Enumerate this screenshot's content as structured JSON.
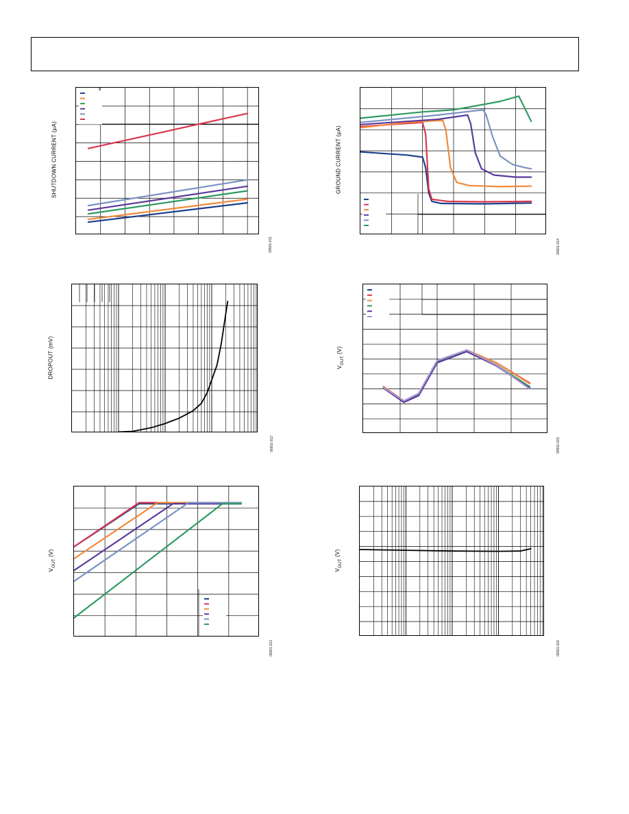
{
  "header": {},
  "chart_data": [
    {
      "id": "c1",
      "type": "line",
      "ylabel": "SHUTDOWN CURRENT (µA)",
      "figure_id": "06501-011",
      "grid": true,
      "xlim": [
        0,
        7.5
      ],
      "ylim": [
        0,
        8
      ],
      "x_gridlines": [
        1,
        2,
        3,
        4,
        5,
        6,
        7
      ],
      "y_gridlines": [
        1,
        2,
        3,
        4,
        5,
        6,
        7
      ],
      "legend_placement": "top-left",
      "series": [
        {
          "color": "#1c3f8a",
          "points": [
            [
              0.5,
              0.7
            ],
            [
              7,
              1.75
            ]
          ]
        },
        {
          "color": "#f28a3a",
          "points": [
            [
              0.5,
              0.85
            ],
            [
              7,
              1.95
            ]
          ]
        },
        {
          "color": "#2e9a62",
          "points": [
            [
              0.5,
              1.15
            ],
            [
              7,
              2.4
            ]
          ]
        },
        {
          "color": "#5a3a9c",
          "points": [
            [
              0.5,
              1.35
            ],
            [
              7,
              2.65
            ]
          ]
        },
        {
          "color": "#7a92c2",
          "points": [
            [
              0.5,
              1.6
            ],
            [
              7,
              3.0
            ]
          ]
        },
        {
          "color": "#d8374f",
          "points": [
            [
              0.5,
              4.7
            ],
            [
              7,
              6.6
            ]
          ]
        }
      ]
    },
    {
      "id": "c2",
      "type": "line",
      "ylabel": "GROUND CURRENT (µA)",
      "figure_id": "06501-014",
      "grid": true,
      "xlim": [
        0,
        6
      ],
      "ylim": [
        0,
        7
      ],
      "x_gridlines": [
        1,
        2,
        3,
        4,
        5
      ],
      "y_gridlines": [
        1,
        2,
        3,
        4,
        5,
        6
      ],
      "legend_placement": "bottom-left",
      "series": [
        {
          "color": "#1c3f8a",
          "points": [
            [
              0,
              3.95
            ],
            [
              1.5,
              3.8
            ],
            [
              2.0,
              3.7
            ],
            [
              2.1,
              3.2
            ],
            [
              2.2,
              2.0
            ],
            [
              2.3,
              1.6
            ],
            [
              2.6,
              1.5
            ],
            [
              4,
              1.48
            ],
            [
              5.5,
              1.52
            ]
          ]
        },
        {
          "color": "#d8374f",
          "points": [
            [
              0,
              5.15
            ],
            [
              1.5,
              5.3
            ],
            [
              2.0,
              5.35
            ],
            [
              2.1,
              4.8
            ],
            [
              2.2,
              2.2
            ],
            [
              2.3,
              1.7
            ],
            [
              2.8,
              1.6
            ],
            [
              4,
              1.58
            ],
            [
              5.5,
              1.6
            ]
          ]
        },
        {
          "color": "#f28a3a",
          "points": [
            [
              0,
              5.1
            ],
            [
              1.5,
              5.35
            ],
            [
              2.65,
              5.45
            ],
            [
              2.75,
              5.0
            ],
            [
              2.9,
              3.2
            ],
            [
              3.1,
              2.5
            ],
            [
              3.5,
              2.35
            ],
            [
              4.5,
              2.3
            ],
            [
              5.5,
              2.32
            ]
          ]
        },
        {
          "color": "#5a3a9c",
          "points": [
            [
              0,
              5.25
            ],
            [
              2.5,
              5.5
            ],
            [
              3.45,
              5.7
            ],
            [
              3.55,
              5.3
            ],
            [
              3.7,
              3.9
            ],
            [
              3.9,
              3.15
            ],
            [
              4.3,
              2.85
            ],
            [
              5,
              2.75
            ],
            [
              5.5,
              2.75
            ]
          ]
        },
        {
          "color": "#7a92c2",
          "points": [
            [
              0,
              5.35
            ],
            [
              2.5,
              5.7
            ],
            [
              3.95,
              5.95
            ],
            [
              4.05,
              5.7
            ],
            [
              4.25,
              4.7
            ],
            [
              4.5,
              3.75
            ],
            [
              4.9,
              3.35
            ],
            [
              5.3,
              3.2
            ],
            [
              5.5,
              3.15
            ]
          ]
        },
        {
          "color": "#2e9a62",
          "points": [
            [
              0,
              5.55
            ],
            [
              2,
              5.85
            ],
            [
              3,
              5.95
            ],
            [
              4.5,
              6.35
            ],
            [
              5.1,
              6.6
            ],
            [
              5.5,
              5.4
            ]
          ]
        }
      ]
    },
    {
      "id": "c3",
      "type": "line",
      "ylabel": "DROPOUT (mV)",
      "figure_id": "06501-012",
      "grid": true,
      "xscale": "log",
      "xlim": [
        0.1,
        1000
      ],
      "ylim": [
        0,
        7
      ],
      "y_gridlines": [
        1,
        2,
        3,
        4,
        5,
        6
      ],
      "series": [
        {
          "color": "#000000",
          "points": [
            [
              1,
              0.05
            ],
            [
              2,
              0.08
            ],
            [
              5,
              0.25
            ],
            [
              10,
              0.45
            ],
            [
              20,
              0.7
            ],
            [
              40,
              1.05
            ],
            [
              60,
              1.4
            ],
            [
              80,
              1.9
            ],
            [
              100,
              2.5
            ],
            [
              130,
              3.2
            ],
            [
              160,
              4.2
            ],
            [
              190,
              5.3
            ],
            [
              220,
              6.2
            ]
          ]
        }
      ]
    },
    {
      "id": "c4",
      "type": "line",
      "ylabel": "VOUT (V)",
      "figure_id": "06501-015",
      "grid": true,
      "xlim": [
        0,
        5
      ],
      "ylim": [
        0,
        10
      ],
      "x_gridlines": [
        1,
        2,
        3,
        4
      ],
      "y_gridlines": [
        1,
        2,
        3,
        4,
        5,
        6,
        7,
        8,
        9
      ],
      "legend_placement": "top-left",
      "series": [
        {
          "color": "#1c3f8a",
          "points": [
            [
              0.55,
              3.1
            ],
            [
              1.1,
              2.1
            ],
            [
              1.5,
              2.6
            ],
            [
              2.0,
              4.8
            ],
            [
              2.8,
              5.55
            ],
            [
              3.6,
              4.6
            ],
            [
              4.5,
              3.1
            ]
          ]
        },
        {
          "color": "#d8374f",
          "points": [
            [
              0.55,
              3.15
            ],
            [
              1.1,
              2.2
            ],
            [
              1.5,
              2.65
            ],
            [
              2.0,
              4.85
            ],
            [
              2.8,
              5.6
            ],
            [
              3.6,
              4.75
            ],
            [
              4.5,
              3.4
            ]
          ]
        },
        {
          "color": "#f28a3a",
          "points": [
            [
              0.55,
              3.15
            ],
            [
              1.1,
              2.2
            ],
            [
              1.5,
              2.65
            ],
            [
              2.0,
              4.85
            ],
            [
              2.8,
              5.6
            ],
            [
              3.6,
              4.75
            ],
            [
              4.5,
              3.35
            ]
          ]
        },
        {
          "color": "#2e9a62",
          "points": [
            [
              0.55,
              3.1
            ],
            [
              1.1,
              2.15
            ],
            [
              1.5,
              2.6
            ],
            [
              2.0,
              4.8
            ],
            [
              2.8,
              5.55
            ],
            [
              3.6,
              4.6
            ],
            [
              4.5,
              3.15
            ]
          ]
        },
        {
          "color": "#5a3a9c",
          "points": [
            [
              0.55,
              3.05
            ],
            [
              1.1,
              2.1
            ],
            [
              1.5,
              2.55
            ],
            [
              2.0,
              4.75
            ],
            [
              2.8,
              5.5
            ],
            [
              3.6,
              4.55
            ],
            [
              4.5,
              3.05
            ]
          ]
        },
        {
          "color": "#a898d0",
          "points": [
            [
              0.55,
              3.1
            ],
            [
              1.1,
              2.2
            ],
            [
              1.5,
              2.7
            ],
            [
              2.0,
              4.9
            ],
            [
              2.8,
              5.6
            ],
            [
              3.6,
              4.6
            ],
            [
              4.5,
              3.0
            ]
          ]
        }
      ]
    },
    {
      "id": "c5",
      "type": "line",
      "ylabel": "VOUT (V)",
      "figure_id": "06501-013",
      "grid": true,
      "xlim": [
        0,
        6
      ],
      "ylim": [
        0,
        7
      ],
      "x_gridlines": [
        1,
        2,
        3,
        4,
        5
      ],
      "y_gridlines": [
        1,
        2,
        3,
        4,
        5,
        6
      ],
      "legend_placement": "bottom-right",
      "series": [
        {
          "color": "#1c3f8a",
          "points": [
            [
              0,
              4.2
            ],
            [
              2.1,
              6.2
            ],
            [
              5.4,
              6.2
            ]
          ]
        },
        {
          "color": "#d8374f",
          "points": [
            [
              0,
              4.2
            ],
            [
              2.1,
              6.25
            ],
            [
              5.4,
              6.25
            ]
          ]
        },
        {
          "color": "#f28a3a",
          "points": [
            [
              0,
              3.65
            ],
            [
              2.7,
              6.25
            ],
            [
              5.4,
              6.25
            ]
          ]
        },
        {
          "color": "#5a3a9c",
          "points": [
            [
              0,
              3.1
            ],
            [
              3.2,
              6.2
            ],
            [
              5.4,
              6.2
            ]
          ]
        },
        {
          "color": "#7a92c2",
          "points": [
            [
              0,
              2.6
            ],
            [
              3.7,
              6.25
            ],
            [
              5.4,
              6.25
            ]
          ]
        },
        {
          "color": "#2e9a62",
          "points": [
            [
              0,
              0.9
            ],
            [
              4.8,
              6.2
            ],
            [
              5.4,
              6.2
            ]
          ]
        }
      ]
    },
    {
      "id": "c6",
      "type": "line",
      "ylabel": "VOUT (V)",
      "figure_id": "06501-016",
      "grid": true,
      "xscale": "log",
      "xlim": [
        0.1,
        1000
      ],
      "ylim": [
        0,
        10
      ],
      "y_gridlines": [
        1,
        2,
        3,
        4,
        5,
        6,
        7,
        8,
        9
      ],
      "series": [
        {
          "color": "#000000",
          "points": [
            [
              0.1,
              5.8
            ],
            [
              1,
              5.75
            ],
            [
              10,
              5.7
            ],
            [
              100,
              5.68
            ],
            [
              300,
              5.7
            ],
            [
              500,
              5.85
            ]
          ]
        }
      ]
    }
  ]
}
